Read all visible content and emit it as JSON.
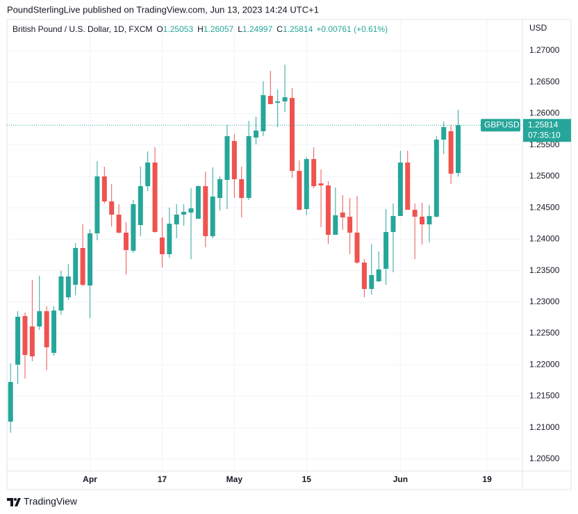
{
  "header": "PoundSterlingLive published on TradingView.com, Jun 13, 2023 14:24 UTC+1",
  "footer": "TradingView",
  "chart_data": {
    "type": "candlestick",
    "title": "British Pound / U.S. Dollar, 1D, FXCM",
    "ohlc_labels": [
      "O",
      "H",
      "L",
      "C"
    ],
    "change": "+0.00761 (+0.61%)",
    "y_axis_unit": "USD",
    "countdown": "07:35:10",
    "up_color": "#26a69a",
    "down_color": "#ef5350",
    "grid": true,
    "last_price_line": true,
    "xlim": [
      -0.5,
      70.9
    ],
    "xticks": [
      {
        "value": 11,
        "label": "Apr"
      },
      {
        "value": 21,
        "label": "17"
      },
      {
        "value": 31,
        "label": "May"
      },
      {
        "value": 41,
        "label": "15"
      },
      {
        "value": 54,
        "label": "Jun"
      },
      {
        "value": 66,
        "label": "19"
      }
    ],
    "ylim": [
      1.20312,
      1.27475
    ],
    "yticks": [
      {
        "value": 1.205,
        "label": "1.20500"
      },
      {
        "value": 1.21,
        "label": "1.21000"
      },
      {
        "value": 1.215,
        "label": "1.21500"
      },
      {
        "value": 1.22,
        "label": "1.22000"
      },
      {
        "value": 1.225,
        "label": "1.22500"
      },
      {
        "value": 1.23,
        "label": "1.23000"
      },
      {
        "value": 1.235,
        "label": "1.23500"
      },
      {
        "value": 1.24,
        "label": "1.24000"
      },
      {
        "value": 1.245,
        "label": "1.24500"
      },
      {
        "value": 1.25,
        "label": "1.25000"
      },
      {
        "value": 1.255,
        "label": "1.25500"
      },
      {
        "value": 1.26,
        "label": "1.26000"
      },
      {
        "value": 1.265,
        "label": "1.26500"
      },
      {
        "value": 1.27,
        "label": "1.27000"
      }
    ],
    "series": [
      {
        "name": "GBPUSD",
        "open": [
          1.21097,
          1.22003,
          1.22777,
          1.22611,
          1.22611,
          1.22854,
          1.22191,
          1.22865,
          1.23075,
          1.23274,
          1.2386,
          1.23263,
          1.24093,
          1.24999,
          1.24601,
          1.24391,
          1.24104,
          1.23816,
          1.24225,
          1.24844,
          1.2522,
          1.24026,
          1.23761,
          1.24236,
          1.24391,
          1.24424,
          1.24325,
          1.24844,
          1.24048,
          1.24656,
          1.24944,
          1.25563,
          1.24955,
          1.24656,
          1.25618,
          1.25718,
          1.26281,
          1.26171,
          1.26193,
          1.26248,
          1.25087,
          1.24479,
          1.25275,
          1.24888,
          1.24855,
          1.2407,
          1.24424,
          1.24358,
          1.24104,
          1.23628,
          1.23208,
          1.2333,
          1.23529,
          1.24115,
          1.24369,
          1.2522,
          1.24468,
          1.24358,
          1.24236,
          1.24358,
          1.25585,
          1.25718,
          1.25053
        ],
        "high": [
          1.22025,
          1.22854,
          1.22832,
          1.23352,
          1.23418,
          1.22932,
          1.22932,
          1.23496,
          1.23606,
          1.23938,
          1.24236,
          1.24159,
          1.25242,
          1.25154,
          1.24877,
          1.24557,
          1.24269,
          1.24623,
          1.25154,
          1.25397,
          1.25463,
          1.24347,
          1.24502,
          1.24557,
          1.24557,
          1.24811,
          1.24855,
          1.25076,
          1.25143,
          1.24999,
          1.25817,
          1.25673,
          1.25154,
          1.25883,
          1.2595,
          1.26514,
          1.26679,
          1.26381,
          1.26779,
          1.26403,
          1.25253,
          1.25309,
          1.25463,
          1.2511,
          1.24922,
          1.24822,
          1.24701,
          1.24656,
          1.2469,
          1.23683,
          1.23927,
          1.23805,
          1.24479,
          1.24568,
          1.25408,
          1.25408,
          1.24568,
          1.24579,
          1.24546,
          1.2564,
          1.25872,
          1.25817,
          1.26057
        ],
        "low": [
          1.2092,
          1.21694,
          1.21782,
          1.22058,
          1.22556,
          1.21915,
          1.22147,
          1.22799,
          1.23031,
          1.23109,
          1.23252,
          1.22744,
          1.23982,
          1.24568,
          1.24203,
          1.24093,
          1.2344,
          1.23783,
          1.24048,
          1.24767,
          1.24104,
          1.23551,
          1.23706,
          1.24015,
          1.24214,
          1.23683,
          1.24325,
          1.23871,
          1.24015,
          1.24457,
          1.24479,
          1.24656,
          1.24347,
          1.24623,
          1.25508,
          1.2564,
          1.26149,
          1.25784,
          1.26027,
          1.24977,
          1.24457,
          1.2438,
          1.24811,
          1.24192,
          1.23927,
          1.2407,
          1.24148,
          1.23761,
          1.23606,
          1.23075,
          1.2312,
          1.23319,
          1.23274,
          1.23473,
          1.24369,
          1.24468,
          1.23683,
          1.23916,
          1.23949,
          1.24347,
          1.25353,
          1.24877,
          1.24997
        ],
        "close": [
          1.21727,
          1.22766,
          1.22158,
          1.22136,
          1.22854,
          1.2228,
          1.22865,
          1.23407,
          1.23407,
          1.2386,
          1.23274,
          1.24093,
          1.24999,
          1.24601,
          1.24391,
          1.24104,
          1.23827,
          1.24557,
          1.24844,
          1.2522,
          1.24115,
          1.23761,
          1.24247,
          1.24391,
          1.24435,
          1.24491,
          1.24844,
          1.24048,
          1.24678,
          1.24955,
          1.2564,
          1.24955,
          1.24656,
          1.2564,
          1.25729,
          1.26292,
          1.26149,
          1.26193,
          1.26259,
          1.25087,
          1.24468,
          1.25275,
          1.24844,
          1.24855,
          1.2407,
          1.2438,
          1.24347,
          1.24104,
          1.23628,
          1.23208,
          1.23429,
          1.23518,
          1.24115,
          1.24369,
          1.2522,
          1.24468,
          1.24358,
          1.24236,
          1.24369,
          1.25585,
          1.25784,
          1.25043,
          1.25814
        ]
      }
    ]
  }
}
